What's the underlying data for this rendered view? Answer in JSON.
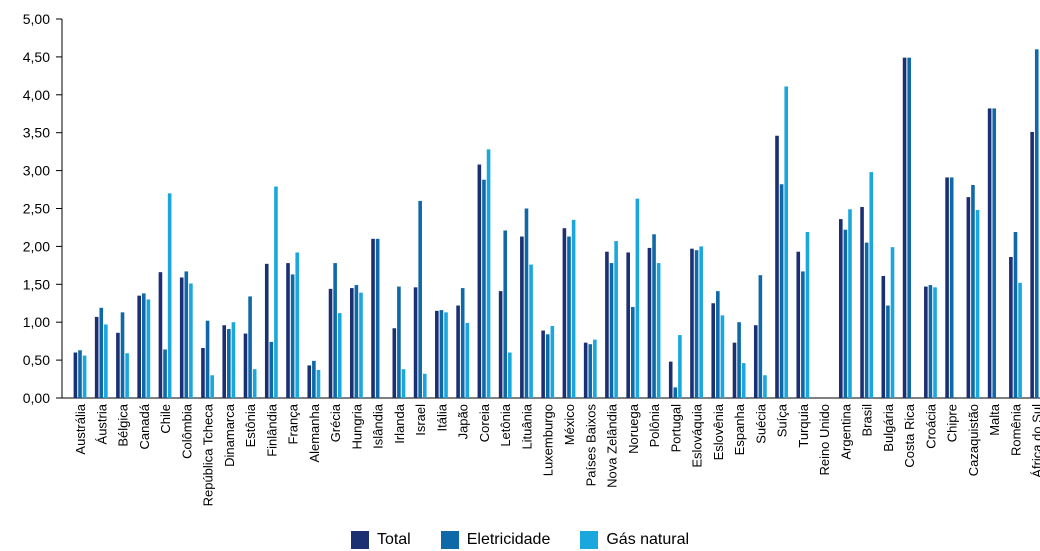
{
  "chart_data": {
    "type": "bar",
    "title": "",
    "xlabel": "",
    "ylabel": "",
    "ylim": [
      0,
      5
    ],
    "yticks": [
      "0,00",
      "0,50",
      "1,00",
      "1,50",
      "2,00",
      "2,50",
      "3,00",
      "3,50",
      "4,00",
      "4,50",
      "5,00"
    ],
    "grid": false,
    "legend_position": "bottom",
    "categories": [
      "Austrália",
      "Áustria",
      "Bélgica",
      "Canadá",
      "Chile",
      "Colômbia",
      "República Tcheca",
      "Dinamarca",
      "Estônia",
      "Finlândia",
      "França",
      "Alemanha",
      "Grécia",
      "Hungria",
      "Islândia",
      "Irlanda",
      "Israel",
      "Itália",
      "Japão",
      "Coreia",
      "Letônia",
      "Lituânia",
      "Luxemburgo",
      "México",
      "Países Baixos",
      "Nova Zelândia",
      "Noruega",
      "Polônia",
      "Portugal",
      "Eslováquia",
      "Eslovênia",
      "Espanha",
      "Suécia",
      "Suíça",
      "Turquia",
      "Reino Unido",
      "Argentina",
      "Brasil",
      "Bulgária",
      "Costa Rica",
      "Croácia",
      "Chipre",
      "Cazaquistão",
      "Malta",
      "Romênia",
      "África do Sul"
    ],
    "series": [
      {
        "name": "Total",
        "color": "#1b2f73",
        "values": [
          0.6,
          1.07,
          0.86,
          1.35,
          1.66,
          1.59,
          0.66,
          0.96,
          0.85,
          1.77,
          1.78,
          0.43,
          1.44,
          1.45,
          2.1,
          0.92,
          1.46,
          1.15,
          1.22,
          3.08,
          1.41,
          2.13,
          0.89,
          2.24,
          0.73,
          1.93,
          1.92,
          1.98,
          0.48,
          1.97,
          1.25,
          0.73,
          0.96,
          3.46,
          1.93,
          null,
          2.36,
          2.52,
          1.61,
          4.49,
          1.47,
          2.91,
          2.65,
          3.82,
          1.86,
          3.51
        ]
      },
      {
        "name": "Eletricidade",
        "color": "#0f69a8",
        "values": [
          0.63,
          1.19,
          1.13,
          1.38,
          0.64,
          1.67,
          1.02,
          0.91,
          1.34,
          0.74,
          1.63,
          0.49,
          1.78,
          1.49,
          2.1,
          1.47,
          2.6,
          1.16,
          1.45,
          2.88,
          2.21,
          2.5,
          0.84,
          2.13,
          0.71,
          1.78,
          1.2,
          2.16,
          0.14,
          1.95,
          1.41,
          1.0,
          1.62,
          2.82,
          1.67,
          null,
          2.22,
          2.05,
          1.22,
          4.49,
          1.49,
          2.91,
          2.81,
          3.82,
          2.19,
          4.6
        ]
      },
      {
        "name": "Gás natural",
        "color": "#1aa7dd",
        "values": [
          0.56,
          0.97,
          0.59,
          1.3,
          2.7,
          1.51,
          0.3,
          1.0,
          0.38,
          2.79,
          1.92,
          0.37,
          1.12,
          1.39,
          null,
          0.38,
          0.32,
          1.13,
          0.99,
          3.28,
          0.6,
          1.76,
          0.95,
          2.35,
          0.77,
          2.07,
          2.63,
          1.78,
          0.83,
          2.0,
          1.09,
          0.46,
          0.3,
          4.11,
          2.19,
          null,
          2.49,
          2.98,
          1.99,
          null,
          1.46,
          null,
          2.48,
          null,
          1.52,
          null
        ]
      }
    ]
  }
}
